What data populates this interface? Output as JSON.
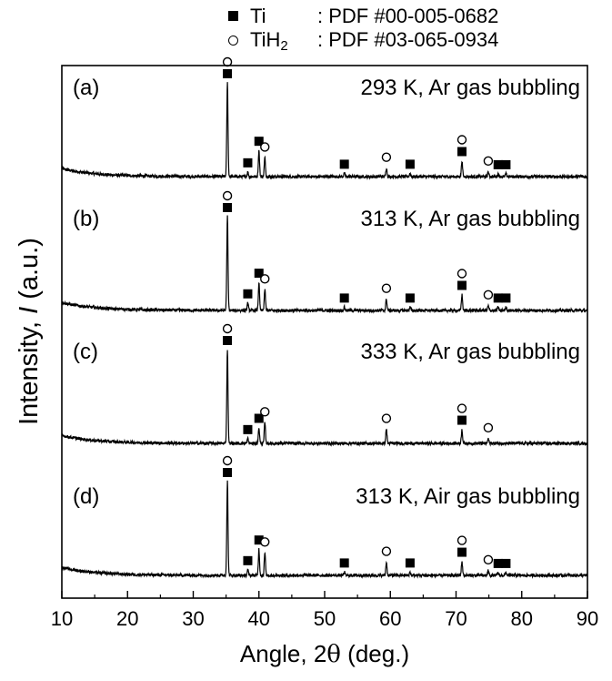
{
  "chart_data": {
    "type": "line",
    "title": "",
    "xlabel_prefix": "Angle, 2",
    "xlabel_symbol": "θ",
    "xlabel_suffix": " (deg.)",
    "ylabel_prefix": "Intensity, ",
    "ylabel_italic": "I",
    "ylabel_suffix": " (a.u.)",
    "xlim": [
      10,
      90
    ],
    "xticks": [
      "10",
      "20",
      "30",
      "40",
      "50",
      "60",
      "70",
      "80",
      "90"
    ],
    "yticks_shown": false,
    "legend": {
      "position": "top-center",
      "entries": [
        {
          "marker": "filled-square",
          "phase": "Ti",
          "ref": ": PDF #00-005-0682"
        },
        {
          "marker": "open-circle",
          "phase_main": "TiH",
          "phase_sub": "2",
          "ref": ": PDF #03-065-0934"
        }
      ]
    },
    "series": [
      {
        "label_letter": "(a)",
        "label_condition": "293 K, Ar gas bubbling",
        "baseline": 0.0,
        "noise": 0.016,
        "peaks": [
          [
            35.2,
            1.0
          ],
          [
            38.3,
            0.05
          ],
          [
            40.0,
            0.28
          ],
          [
            40.9,
            0.2
          ],
          [
            53.0,
            0.035
          ],
          [
            59.4,
            0.09
          ],
          [
            63.0,
            0.035
          ],
          [
            70.9,
            0.17
          ],
          [
            74.9,
            0.05
          ],
          [
            76.4,
            0.03
          ],
          [
            77.6,
            0.03
          ]
        ],
        "markers": [
          {
            "x": 35.2,
            "type": "square",
            "level": 1.0
          },
          {
            "x": 35.2,
            "type": "circle",
            "level": 1.0
          },
          {
            "x": 38.3,
            "type": "square",
            "level": 0.05
          },
          {
            "x": 40.0,
            "type": "square",
            "level": 0.28
          },
          {
            "x": 40.9,
            "type": "circle",
            "level": 0.2
          },
          {
            "x": 53.0,
            "type": "square",
            "level": 0.035
          },
          {
            "x": 59.4,
            "type": "circle",
            "level": 0.09
          },
          {
            "x": 63.0,
            "type": "square",
            "level": 0.035
          },
          {
            "x": 70.9,
            "type": "square",
            "level": 0.17
          },
          {
            "x": 70.9,
            "type": "circle",
            "level": 0.17
          },
          {
            "x": 74.9,
            "type": "circle",
            "level": 0.05
          },
          {
            "x": 76.4,
            "type": "square",
            "level": 0.03
          },
          {
            "x": 77.6,
            "type": "square",
            "level": 0.03
          }
        ]
      },
      {
        "label_letter": "(b)",
        "label_condition": "313 K, Ar gas bubbling",
        "baseline": 0.0,
        "noise": 0.016,
        "peaks": [
          [
            35.2,
            1.0
          ],
          [
            38.3,
            0.08
          ],
          [
            40.0,
            0.3
          ],
          [
            40.9,
            0.22
          ],
          [
            53.0,
            0.035
          ],
          [
            59.4,
            0.12
          ],
          [
            63.0,
            0.035
          ],
          [
            70.9,
            0.17
          ],
          [
            74.9,
            0.05
          ],
          [
            76.4,
            0.035
          ],
          [
            77.6,
            0.035
          ]
        ],
        "markers": [
          {
            "x": 35.2,
            "type": "square",
            "level": 1.0
          },
          {
            "x": 35.2,
            "type": "circle",
            "level": 1.0
          },
          {
            "x": 38.3,
            "type": "square",
            "level": 0.08
          },
          {
            "x": 40.0,
            "type": "square",
            "level": 0.3
          },
          {
            "x": 40.9,
            "type": "circle",
            "level": 0.22
          },
          {
            "x": 53.0,
            "type": "square",
            "level": 0.035
          },
          {
            "x": 59.4,
            "type": "circle",
            "level": 0.12
          },
          {
            "x": 63.0,
            "type": "square",
            "level": 0.035
          },
          {
            "x": 70.9,
            "type": "square",
            "level": 0.17
          },
          {
            "x": 70.9,
            "type": "circle",
            "level": 0.17
          },
          {
            "x": 74.9,
            "type": "circle",
            "level": 0.05
          },
          {
            "x": 76.4,
            "type": "square",
            "level": 0.035
          },
          {
            "x": 77.6,
            "type": "square",
            "level": 0.035
          }
        ]
      },
      {
        "label_letter": "(c)",
        "label_condition": "333 K, Ar gas bubbling",
        "baseline": 0.0,
        "noise": 0.016,
        "peaks": [
          [
            35.2,
            1.0
          ],
          [
            38.3,
            0.05
          ],
          [
            40.0,
            0.17
          ],
          [
            40.9,
            0.22
          ],
          [
            59.4,
            0.15
          ],
          [
            70.9,
            0.15
          ],
          [
            74.9,
            0.05
          ]
        ],
        "markers": [
          {
            "x": 35.2,
            "type": "square",
            "level": 1.0
          },
          {
            "x": 35.2,
            "type": "circle",
            "level": 1.0
          },
          {
            "x": 38.3,
            "type": "square",
            "level": 0.05
          },
          {
            "x": 40.0,
            "type": "square",
            "level": 0.17
          },
          {
            "x": 40.9,
            "type": "circle",
            "level": 0.22
          },
          {
            "x": 59.4,
            "type": "circle",
            "level": 0.15
          },
          {
            "x": 70.9,
            "type": "square",
            "level": 0.15
          },
          {
            "x": 70.9,
            "type": "circle",
            "level": 0.15
          },
          {
            "x": 74.9,
            "type": "circle",
            "level": 0.05
          }
        ]
      },
      {
        "label_letter": "(d)",
        "label_condition": "313 K, Air gas bubbling",
        "baseline": 0.0,
        "noise": 0.016,
        "peaks": [
          [
            35.2,
            1.0
          ],
          [
            38.3,
            0.06
          ],
          [
            40.0,
            0.28
          ],
          [
            40.9,
            0.24
          ],
          [
            53.0,
            0.035
          ],
          [
            59.4,
            0.14
          ],
          [
            63.0,
            0.035
          ],
          [
            70.9,
            0.15
          ],
          [
            74.9,
            0.05
          ],
          [
            76.4,
            0.03
          ],
          [
            77.6,
            0.03
          ]
        ],
        "markers": [
          {
            "x": 35.2,
            "type": "square",
            "level": 1.0
          },
          {
            "x": 35.2,
            "type": "circle",
            "level": 1.0
          },
          {
            "x": 38.3,
            "type": "square",
            "level": 0.06
          },
          {
            "x": 40.0,
            "type": "square",
            "level": 0.28
          },
          {
            "x": 40.9,
            "type": "circle",
            "level": 0.24
          },
          {
            "x": 53.0,
            "type": "square",
            "level": 0.035
          },
          {
            "x": 59.4,
            "type": "circle",
            "level": 0.14
          },
          {
            "x": 63.0,
            "type": "square",
            "level": 0.035
          },
          {
            "x": 70.9,
            "type": "square",
            "level": 0.15
          },
          {
            "x": 70.9,
            "type": "circle",
            "level": 0.15
          },
          {
            "x": 74.9,
            "type": "circle",
            "level": 0.05
          },
          {
            "x": 76.4,
            "type": "square",
            "level": 0.03
          },
          {
            "x": 77.6,
            "type": "square",
            "level": 0.03
          }
        ]
      }
    ]
  }
}
